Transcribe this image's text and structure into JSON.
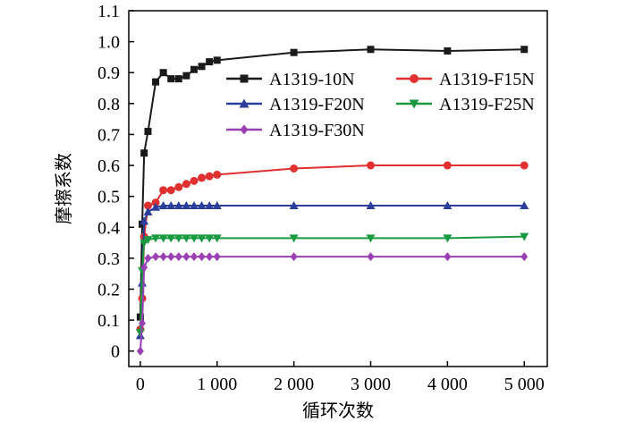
{
  "chart_data": {
    "type": "line",
    "xlabel": "循环次数",
    "ylabel": "摩擦系数",
    "xlim": [
      -150,
      5300
    ],
    "ylim": [
      -0.05,
      1.1
    ],
    "x_ticks": [
      0,
      1000,
      2000,
      3000,
      4000,
      5000
    ],
    "x_tick_labels": [
      "0",
      "1 000",
      "2 000",
      "3 000",
      "4 000",
      "5 000"
    ],
    "y_ticks": [
      0,
      0.1,
      0.2,
      0.3,
      0.4,
      0.5,
      0.6,
      0.7,
      0.8,
      0.9,
      1.0,
      1.1
    ],
    "y_tick_labels": [
      "0",
      "0.1",
      "0.2",
      "0.3",
      "0.4",
      "0.5",
      "0.6",
      "0.7",
      "0.8",
      "0.9",
      "1.0",
      "1.1"
    ],
    "grid": false,
    "legend_position": "top-right",
    "series": [
      {
        "name": "A1319-10N",
        "color": "#1a1a1a",
        "marker": "square",
        "x": [
          0,
          25,
          50,
          100,
          200,
          300,
          400,
          500,
          600,
          700,
          800,
          900,
          1000,
          2000,
          3000,
          4000,
          5000
        ],
        "y": [
          0.11,
          0.41,
          0.64,
          0.71,
          0.87,
          0.9,
          0.88,
          0.88,
          0.89,
          0.91,
          0.92,
          0.935,
          0.94,
          0.965,
          0.975,
          0.97,
          0.975
        ]
      },
      {
        "name": "A1319-F15N",
        "color": "#e03030",
        "marker": "circle",
        "x": [
          0,
          25,
          50,
          100,
          200,
          300,
          400,
          500,
          600,
          700,
          800,
          900,
          1000,
          2000,
          3000,
          4000,
          5000
        ],
        "y": [
          0.07,
          0.17,
          0.37,
          0.47,
          0.48,
          0.52,
          0.52,
          0.53,
          0.54,
          0.55,
          0.56,
          0.565,
          0.57,
          0.59,
          0.6,
          0.6,
          0.6
        ]
      },
      {
        "name": "A1319-F20N",
        "color": "#2c3e9c",
        "marker": "triangle-up",
        "x": [
          0,
          25,
          50,
          100,
          200,
          300,
          400,
          500,
          600,
          700,
          800,
          900,
          1000,
          2000,
          3000,
          4000,
          5000
        ],
        "y": [
          0.05,
          0.22,
          0.42,
          0.45,
          0.465,
          0.47,
          0.47,
          0.47,
          0.47,
          0.47,
          0.47,
          0.47,
          0.47,
          0.47,
          0.47,
          0.47,
          0.47
        ]
      },
      {
        "name": "A1319-F25N",
        "color": "#1a9a40",
        "marker": "triangle-down",
        "x": [
          0,
          25,
          50,
          100,
          200,
          300,
          400,
          500,
          600,
          700,
          800,
          900,
          1000,
          2000,
          3000,
          4000,
          5000
        ],
        "y": [
          0.06,
          0.26,
          0.35,
          0.36,
          0.365,
          0.365,
          0.365,
          0.365,
          0.365,
          0.365,
          0.365,
          0.365,
          0.365,
          0.365,
          0.365,
          0.365,
          0.37
        ]
      },
      {
        "name": "A1319-F30N",
        "color": "#9b3fb5",
        "marker": "diamond",
        "x": [
          0,
          25,
          50,
          100,
          200,
          300,
          400,
          500,
          600,
          700,
          800,
          900,
          1000,
          2000,
          3000,
          4000,
          5000
        ],
        "y": [
          0.0,
          0.09,
          0.27,
          0.3,
          0.305,
          0.305,
          0.305,
          0.305,
          0.305,
          0.305,
          0.305,
          0.305,
          0.305,
          0.305,
          0.305,
          0.305,
          0.305
        ]
      }
    ]
  }
}
